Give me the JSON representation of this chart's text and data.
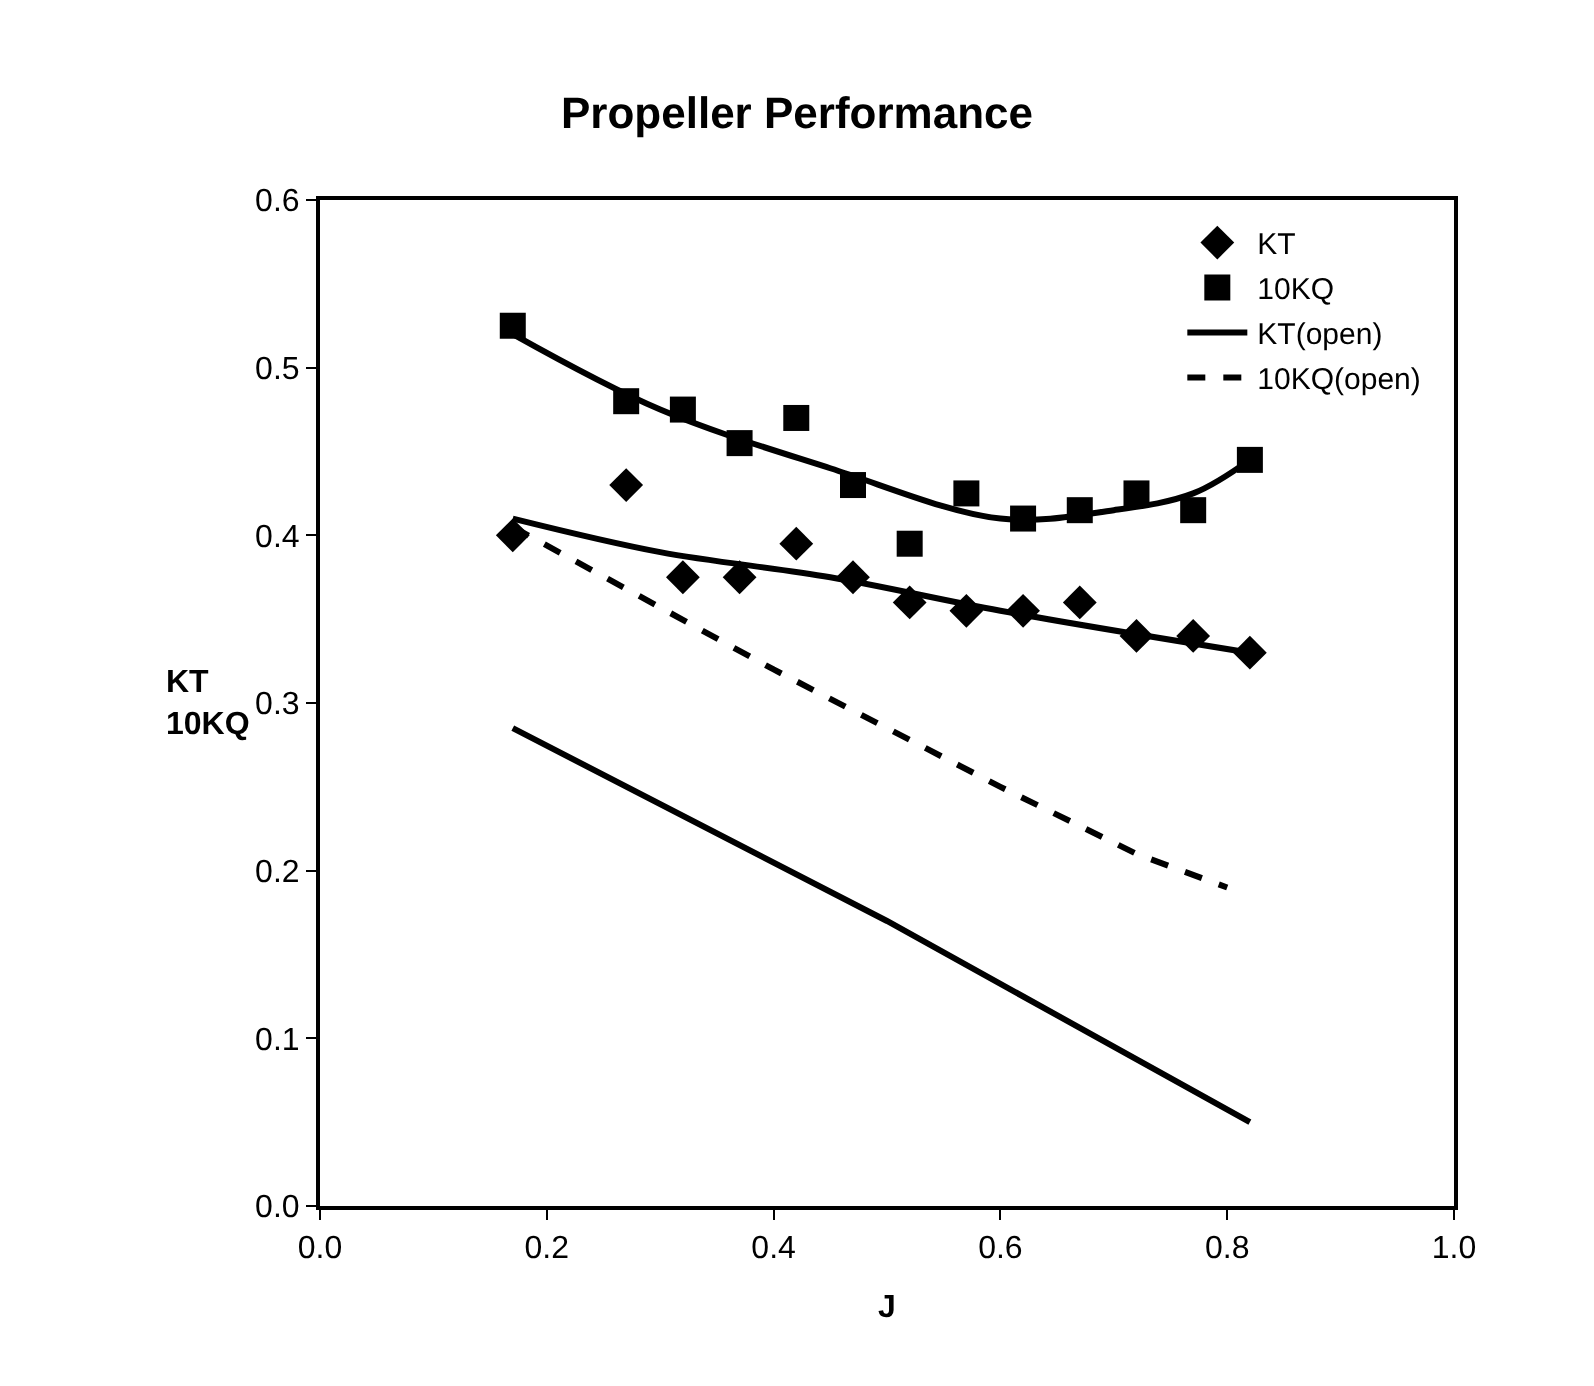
{
  "chart_data": {
    "type": "scatter",
    "title": "Propeller Performance",
    "xlabel": "J",
    "ylabel": "KT\n10KQ",
    "xlim": [
      0,
      1
    ],
    "xticks": [
      {
        "value": 0,
        "label": "0.0"
      },
      0.2,
      0.4,
      0.6,
      0.8,
      {
        "value": 1,
        "label": "1.0"
      }
    ],
    "ylim": [
      0,
      0.6
    ],
    "yticks": [
      {
        "value": 0,
        "label": "0.0"
      },
      0.1,
      0.2,
      0.3,
      0.4,
      0.5,
      0.6
    ],
    "legend": "top right",
    "x": [
      0.17,
      0.27,
      0.32,
      0.37,
      0.42,
      0.47,
      0.52,
      0.57,
      0.62,
      0.67,
      0.72,
      0.77,
      0.82
    ],
    "series": [
      {
        "name": "KT",
        "marker": "diamond",
        "color": "#000000",
        "values": [
          0.4,
          0.43,
          0.375,
          0.375,
          0.395,
          0.375,
          0.36,
          0.355,
          0.355,
          0.36,
          0.34,
          0.34,
          0.33
        ]
      },
      {
        "name": "10KQ",
        "marker": "square",
        "color": "#000000",
        "values": [
          0.525,
          0.48,
          0.475,
          0.455,
          0.47,
          0.43,
          0.395,
          0.425,
          0.41,
          0.415,
          0.425,
          0.415,
          0.445
        ]
      },
      {
        "name": "KT(open)",
        "type": "line",
        "line_style": "solid",
        "color": "#000000",
        "x": [
          0.17,
          0.5,
          0.82
        ],
        "values": [
          0.285,
          0.17,
          0.05
        ]
      },
      {
        "name": "10KQ(open)",
        "type": "line",
        "line_style": "dashed",
        "color": "#000000",
        "x": [
          0.17,
          0.4,
          0.6,
          0.72,
          0.8
        ],
        "values": [
          0.405,
          0.32,
          0.25,
          0.21,
          0.19
        ]
      },
      {
        "type": "line",
        "line_style": "solid",
        "color": "#000000",
        "x": [
          0.17,
          0.3,
          0.45,
          0.6,
          0.82
        ],
        "values": [
          0.41,
          0.39,
          0.375,
          0.355,
          0.33
        ]
      },
      {
        "type": "line",
        "line_style": "solid",
        "color": "#000000",
        "x": [
          0.17,
          0.3,
          0.45,
          0.6,
          0.7,
          0.77,
          0.82
        ],
        "values": [
          0.52,
          0.475,
          0.44,
          0.41,
          0.415,
          0.425,
          0.445
        ]
      }
    ]
  }
}
